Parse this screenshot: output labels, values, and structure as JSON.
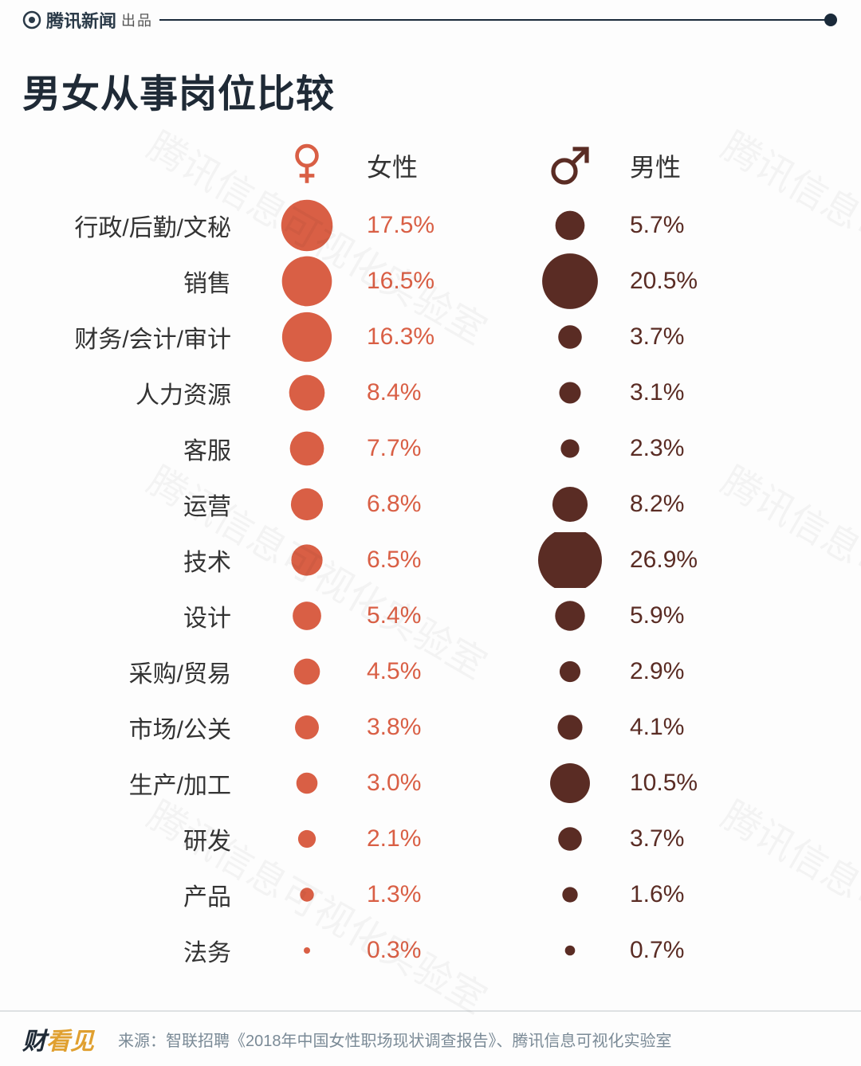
{
  "brand": {
    "name": "腾讯新闻",
    "suffix": "出品"
  },
  "title": "男女从事岗位比较",
  "watermark": "腾讯信息可视化实验室",
  "colors": {
    "female": "#d95f45",
    "male": "#5a2c24",
    "text": "#333333",
    "header_line": "#1a2a3a",
    "source_text": "#7a8a96"
  },
  "headers": {
    "female": "女性",
    "male": "男性"
  },
  "dot_scale": {
    "min_radius_px": 4,
    "max_radius_px": 40,
    "min_value": 0.3,
    "max_value": 26.9
  },
  "rows": [
    {
      "category": "行政/后勤/文秘",
      "female": 17.5,
      "male": 5.7
    },
    {
      "category": "销售",
      "female": 16.5,
      "male": 20.5
    },
    {
      "category": "财务/会计/审计",
      "female": 16.3,
      "male": 3.7
    },
    {
      "category": "人力资源",
      "female": 8.4,
      "male": 3.1
    },
    {
      "category": "客服",
      "female": 7.7,
      "male": 2.3
    },
    {
      "category": "运营",
      "female": 6.8,
      "male": 8.2
    },
    {
      "category": "技术",
      "female": 6.5,
      "male": 26.9
    },
    {
      "category": "设计",
      "female": 5.4,
      "male": 5.9
    },
    {
      "category": "采购/贸易",
      "female": 4.5,
      "male": 2.9
    },
    {
      "category": "市场/公关",
      "female": 3.8,
      "male": 4.1
    },
    {
      "category": "生产/加工",
      "female": 3.0,
      "male": 10.5
    },
    {
      "category": "研发",
      "female": 2.1,
      "male": 3.7
    },
    {
      "category": "产品",
      "female": 1.3,
      "male": 1.6
    },
    {
      "category": "法务",
      "female": 0.3,
      "male": 0.7
    }
  ],
  "footer": {
    "logo_main": "财",
    "logo_rest": "看见",
    "source": "来源：智联招聘《2018年中国女性职场现状调查报告》、腾讯信息可视化实验室"
  }
}
